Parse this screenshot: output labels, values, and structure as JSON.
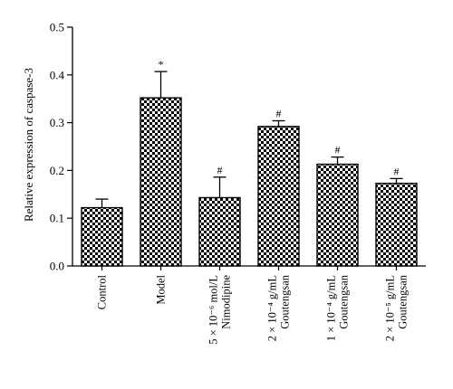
{
  "chart_data": {
    "type": "bar",
    "title": "",
    "xlabel": "",
    "ylabel": "Relative expression of caspase-3",
    "ylim": [
      0,
      0.5
    ],
    "yticks": [
      "0.0",
      "0.1",
      "0.2",
      "0.3",
      "0.4",
      "0.5"
    ],
    "grid": false,
    "categories": [
      [
        "Control"
      ],
      [
        "Model"
      ],
      [
        "5 × 10⁻⁶ mol/L",
        "Nimodipine"
      ],
      [
        "2 × 10⁻⁴ g/mL",
        "Goutengsan"
      ],
      [
        "1 × 10⁻⁴ g/mL",
        "Goutengsan"
      ],
      [
        "2 × 10⁻⁵ g/mL",
        "Goutengsan"
      ]
    ],
    "values": [
      0.122,
      0.352,
      0.143,
      0.292,
      0.213,
      0.173
    ],
    "errors": [
      0.018,
      0.055,
      0.043,
      0.012,
      0.015,
      0.01
    ],
    "markers": [
      "",
      "*",
      "#",
      "#",
      "#",
      "#"
    ],
    "bar_pattern": "checkerboard",
    "colors": {
      "bar_fill": "#000000",
      "bar_pattern_light": "#ffffff",
      "axis": "#000000"
    }
  }
}
